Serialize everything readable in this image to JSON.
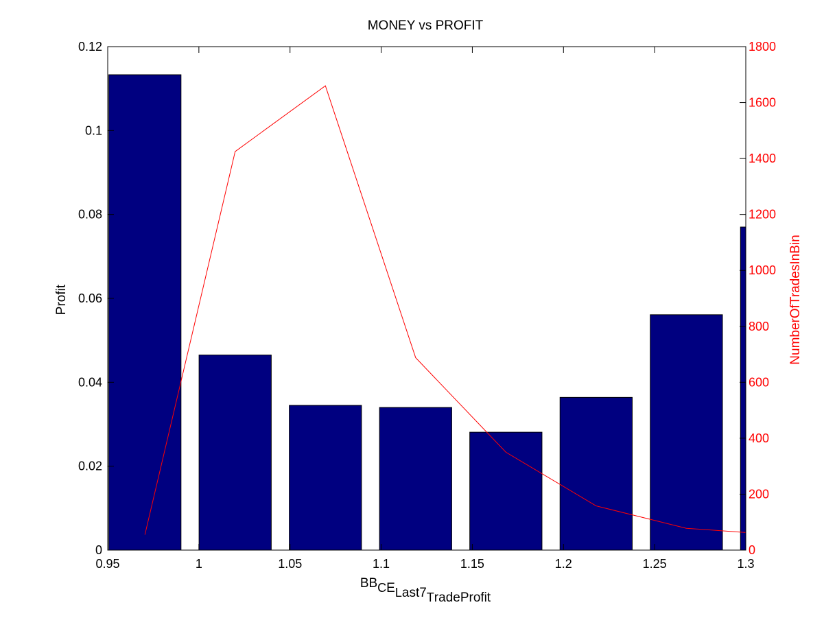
{
  "chart_data": {
    "type": "bar",
    "title": "MONEY vs PROFIT",
    "xlabel_parts": [
      {
        "text": "BB",
        "sub": false
      },
      {
        "text": "C",
        "sub": true
      },
      {
        "text": "E",
        "sub": false
      },
      {
        "text": "L",
        "sub": true
      },
      {
        "text": "ast7",
        "sub": false
      },
      {
        "text": "T",
        "sub": true
      },
      {
        "text": "radeProfit",
        "sub": false
      }
    ],
    "ylabel_left": "Profit",
    "ylabel_right": "NumberOfTradesInBin",
    "xlim": [
      0.95,
      1.3
    ],
    "ylim_left": [
      0,
      0.12
    ],
    "ylim_right": [
      0,
      1800
    ],
    "x_ticks": [
      "0.95",
      "1",
      "1.05",
      "1.1",
      "1.15",
      "1.2",
      "1.25",
      "1.3"
    ],
    "y_left_ticks": [
      "0",
      "0.02",
      "0.04",
      "0.06",
      "0.08",
      "0.1",
      "0.12"
    ],
    "y_right_ticks": [
      "0",
      "200",
      "400",
      "600",
      "800",
      "1000",
      "1200",
      "1400",
      "1600",
      "1800"
    ],
    "bar_series": {
      "name": "Profit",
      "axis": "left",
      "color": "#000080",
      "x": [
        0.9704,
        1.0199,
        1.0694,
        1.1189,
        1.1684,
        1.2179,
        1.2674,
        1.3169
      ],
      "values": [
        0.1133,
        0.0465,
        0.0345,
        0.034,
        0.0281,
        0.0364,
        0.0561,
        0.077
      ]
    },
    "line_series": {
      "name": "NumberOfTradesInBin",
      "axis": "right",
      "color": "#ff0000",
      "x": [
        0.9704,
        1.0199,
        1.0694,
        1.1189,
        1.1684,
        1.2179,
        1.2674,
        1.3169
      ],
      "values": [
        55,
        1425,
        1660,
        688,
        350,
        158,
        78,
        55
      ]
    },
    "bar_width": 0.0396,
    "grid": false,
    "legend": "none"
  }
}
